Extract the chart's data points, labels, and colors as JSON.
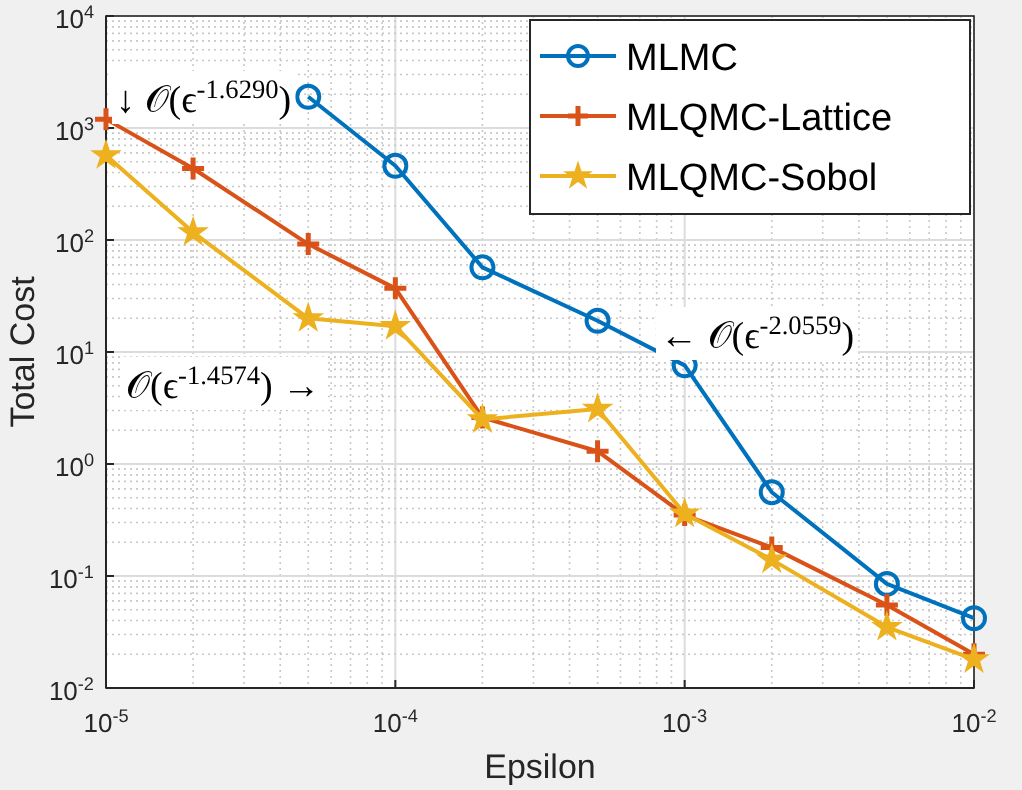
{
  "chart_data": {
    "type": "line",
    "xlabel": "Epsilon",
    "ylabel": "Total Cost",
    "log": "xy",
    "grid": true,
    "legend": "top right",
    "line_style": "solid",
    "xlim": [
      1e-05,
      0.01
    ],
    "ylim": [
      0.01,
      10000
    ],
    "xticks": [
      {
        "value": 1e-05,
        "label": "10$^{-5}$"
      },
      {
        "value": 0.0001,
        "label": "10$^{-4}$"
      },
      {
        "value": 0.001,
        "label": "10$^{-3}$"
      },
      {
        "value": 0.01,
        "label": "10$^{-2}$"
      }
    ],
    "yticks": [
      {
        "value": 0.01,
        "label": "10$^{-2}$"
      },
      {
        "value": 0.1,
        "label": "10$^{-1}$"
      },
      {
        "value": 1,
        "label": "10$^{0}$"
      },
      {
        "value": 10,
        "label": "10$^{1}$"
      },
      {
        "value": 100,
        "label": "10$^{2}$"
      },
      {
        "value": 1000,
        "label": "10$^{3}$"
      },
      {
        "value": 10000,
        "label": "10$^{4}$"
      }
    ],
    "x": [
      1e-05,
      2e-05,
      5e-05,
      0.0001,
      0.0002,
      0.0005,
      0.001,
      0.002,
      0.005,
      0.01
    ],
    "series": [
      {
        "name": "MLMC",
        "color": "#0072bd",
        "marker": "circle",
        "values": [
          null,
          null,
          1900,
          460,
          57,
          19,
          7.6,
          0.56,
          0.085,
          0.042
        ]
      },
      {
        "name": "MLQMC-Lattice",
        "color": "#d95319",
        "marker": "cross",
        "values": [
          1200,
          435,
          92,
          37,
          2.6,
          1.3,
          0.35,
          0.18,
          0.055,
          0.02
        ]
      },
      {
        "name": "MLQMC-Sobol",
        "color": "#edb120",
        "marker": "star",
        "values": [
          570,
          117,
          20,
          17,
          2.5,
          3.1,
          0.36,
          0.14,
          0.035,
          0.018
        ]
      }
    ],
    "annotations": [
      "↓ 𝒪(ϵ$^{-1.6290}$)",
      "𝒪(ϵ$^{-1.4574}$) →",
      "← 𝒪(ϵ$^{-2.0559}$)"
    ]
  }
}
